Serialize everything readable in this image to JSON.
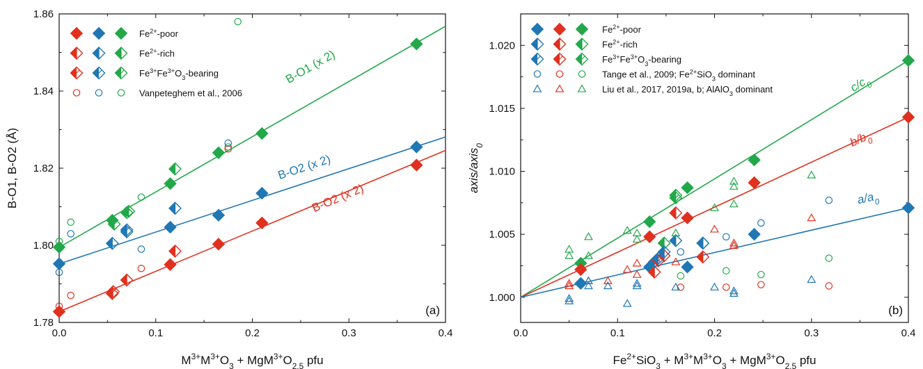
{
  "colors": {
    "red": "#e0301e",
    "blue": "#1f77b4",
    "green": "#22a84a",
    "axis": "#111111"
  },
  "chart_data": [
    {
      "type": "scatter",
      "panel_label": "(a)",
      "xlabel_parts": [
        "M",
        "3+",
        "M",
        "3+",
        "O",
        "3",
        " + MgM",
        "3+",
        "O",
        "2.5",
        " pfu"
      ],
      "ylabel_parts": [
        "B-O1, B-O2 (",
        "Å",
        ")"
      ],
      "xlim": [
        0,
        0.4
      ],
      "ylim": [
        1.78,
        1.86
      ],
      "xticks": [
        0.0,
        0.1,
        0.2,
        0.3,
        0.4
      ],
      "xtick_labels": [
        "0.0",
        "0.1",
        "0.2",
        "0.3",
        "0.4"
      ],
      "yticks": [
        1.78,
        1.8,
        1.82,
        1.84,
        1.86
      ],
      "ytick_labels": [
        "1.78",
        "1.80",
        "1.82",
        "1.84",
        "1.86"
      ],
      "legend": [
        {
          "parts": [
            "Fe",
            "2+",
            "-poor"
          ],
          "marker": "diamond-filled",
          "colors": [
            "red",
            "blue",
            "green"
          ]
        },
        {
          "parts": [
            "Fe",
            "2+",
            "-rich"
          ],
          "marker": "diamond-half-v",
          "colors": [
            "red",
            "blue",
            "green"
          ]
        },
        {
          "parts": [
            "Fe",
            "3+",
            "Fe",
            "3+",
            "O",
            "3",
            "-bearing"
          ],
          "marker": "diamond-half-d",
          "colors": [
            "red",
            "blue",
            "green"
          ]
        },
        {
          "parts": [
            "Vanpeteghem et al., 2006"
          ],
          "marker": "circle-open",
          "colors": [
            "red",
            "blue",
            "green"
          ]
        }
      ],
      "fits": [
        {
          "name": "B-O1 (x 2)",
          "color": "green",
          "x": [
            0,
            0.4
          ],
          "y": [
            1.7995,
            1.8568
          ],
          "label_at": [
            0.262,
            1.8454
          ]
        },
        {
          "name": "B-O2 (x 2)",
          "color": "blue",
          "x": [
            0,
            0.4
          ],
          "y": [
            1.7952,
            1.8281
          ],
          "label_at": [
            0.255,
            1.8193
          ]
        },
        {
          "name": "B-O2 (x 2)",
          "color": "red",
          "x": [
            0,
            0.4
          ],
          "y": [
            1.7828,
            1.8246
          ],
          "label_at": [
            0.29,
            1.8113
          ]
        }
      ],
      "series": [
        {
          "color": "green",
          "marker": "diamond-filled",
          "x": [
            0.0,
            0.055,
            0.115,
            0.165,
            0.21,
            0.37
          ],
          "y": [
            1.7995,
            1.8065,
            1.816,
            1.824,
            1.829,
            1.8522
          ]
        },
        {
          "color": "blue",
          "marker": "diamond-filled",
          "x": [
            0.0,
            0.115,
            0.165,
            0.21,
            0.37
          ],
          "y": [
            1.7952,
            1.8047,
            1.8078,
            1.8135,
            1.8255
          ]
        },
        {
          "color": "red",
          "marker": "diamond-filled",
          "x": [
            0.0,
            0.115,
            0.165,
            0.21,
            0.37
          ],
          "y": [
            1.7828,
            1.795,
            1.8003,
            1.8058,
            1.8208
          ]
        },
        {
          "color": "green",
          "marker": "diamond-half-v",
          "x": [
            0.057,
            0.072,
            0.12
          ],
          "y": [
            1.8055,
            1.8088,
            1.8198
          ]
        },
        {
          "color": "blue",
          "marker": "diamond-half-v",
          "x": [
            0.055,
            0.07,
            0.12
          ],
          "y": [
            1.8005,
            1.8035,
            1.8096
          ]
        },
        {
          "color": "red",
          "marker": "diamond-half-v",
          "x": [
            0.055,
            0.07,
            0.12
          ],
          "y": [
            1.7875,
            1.791,
            1.7985
          ]
        },
        {
          "color": "green",
          "marker": "diamond-half-d",
          "x": [
            0.07
          ],
          "y": [
            1.8085
          ]
        },
        {
          "color": "blue",
          "marker": "diamond-half-d",
          "x": [
            0.07
          ],
          "y": [
            1.804
          ]
        },
        {
          "color": "red",
          "marker": "diamond-half-d",
          "x": [
            0.056
          ],
          "y": [
            1.788
          ]
        },
        {
          "color": "green",
          "marker": "circle-open",
          "x": [
            0.0,
            0.012,
            0.085,
            0.175,
            0.185
          ],
          "y": [
            1.801,
            1.806,
            1.8125,
            1.8255,
            1.858
          ]
        },
        {
          "color": "blue",
          "marker": "circle-open",
          "x": [
            0.0,
            0.012,
            0.085,
            0.175
          ],
          "y": [
            1.793,
            1.803,
            1.799,
            1.8265
          ]
        },
        {
          "color": "red",
          "marker": "circle-open",
          "x": [
            0.0,
            0.012,
            0.085,
            0.175
          ],
          "y": [
            1.7842,
            1.787,
            1.794,
            1.825
          ]
        }
      ]
    },
    {
      "type": "scatter",
      "panel_label": "(b)",
      "xlabel_parts": [
        "Fe",
        "2+",
        "SiO",
        "3",
        " + M",
        "3+",
        "M",
        "3+",
        "O",
        "3",
        " + MgM",
        "3+",
        "O",
        "2.5",
        " pfu"
      ],
      "ylabel_parts": [
        "axis/axis",
        "0"
      ],
      "xlim": [
        0,
        0.4
      ],
      "ylim": [
        0.998,
        1.0225
      ],
      "xticks": [
        0.0,
        0.1,
        0.2,
        0.3,
        0.4
      ],
      "xtick_labels": [
        "0.0",
        "0.1",
        "0.2",
        "0.3",
        "0.4"
      ],
      "yticks": [
        1.0,
        1.005,
        1.01,
        1.015,
        1.02
      ],
      "ytick_labels": [
        "1.000",
        "1.005",
        "1.010",
        "1.015",
        "1.020"
      ],
      "legend": [
        {
          "parts": [
            "Fe",
            "2+",
            "-poor"
          ],
          "marker": "diamond-filled",
          "colors": [
            "blue",
            "red",
            "green"
          ]
        },
        {
          "parts": [
            "Fe",
            "2+",
            "-rich"
          ],
          "marker": "diamond-half-v",
          "colors": [
            "blue",
            "red",
            "green"
          ]
        },
        {
          "parts": [
            "Fe",
            "3+",
            "Fe",
            "3+",
            "O",
            "3",
            "-bearing"
          ],
          "marker": "diamond-half-d",
          "colors": [
            "blue",
            "red",
            "green"
          ]
        },
        {
          "parts": [
            "Tange et al., 2009; Fe",
            "2+",
            "SiO",
            "3",
            " dominant"
          ],
          "marker": "circle-open",
          "colors": [
            "blue",
            "red",
            "green"
          ]
        },
        {
          "parts": [
            "Liu et al., 2017, 2019a, b; AlAlO",
            "3",
            " dominant"
          ],
          "marker": "triangle-open",
          "colors": [
            "blue",
            "red",
            "green"
          ]
        }
      ],
      "fits": [
        {
          "name_parts": [
            "c/c",
            "0"
          ],
          "color": "green",
          "x": [
            0,
            0.4
          ],
          "y": [
            1.0,
            1.0188
          ],
          "label_at": [
            0.352,
            1.0167
          ]
        },
        {
          "name_parts": [
            "b/b",
            "0"
          ],
          "color": "red",
          "x": [
            0,
            0.4
          ],
          "y": [
            1.0,
            1.0143
          ],
          "label_at": [
            0.352,
            1.0123
          ]
        },
        {
          "name_parts": [
            "a/a",
            "0"
          ],
          "color": "blue",
          "x": [
            0,
            0.4
          ],
          "y": [
            1.0,
            1.0071
          ],
          "label_at": [
            0.359,
            1.0076
          ]
        }
      ],
      "series": [
        {
          "color": "green",
          "marker": "diamond-filled",
          "x": [
            0.062,
            0.133,
            0.172,
            0.241,
            0.4
          ],
          "y": [
            1.0027,
            1.006,
            1.0087,
            1.0109,
            1.0188
          ]
        },
        {
          "color": "red",
          "marker": "diamond-filled",
          "x": [
            0.062,
            0.133,
            0.172,
            0.241,
            0.4
          ],
          "y": [
            1.0022,
            1.0048,
            1.0063,
            1.0091,
            1.0143
          ]
        },
        {
          "color": "blue",
          "marker": "diamond-filled",
          "x": [
            0.062,
            0.133,
            0.172,
            0.241,
            0.4
          ],
          "y": [
            1.0011,
            1.0024,
            1.0024,
            1.005,
            1.0071
          ]
        },
        {
          "color": "green",
          "marker": "diamond-half-v",
          "x": [
            0.148,
            0.16,
            0.188
          ],
          "y": [
            1.0043,
            1.0081,
            1.0043
          ]
        },
        {
          "color": "red",
          "marker": "diamond-half-v",
          "x": [
            0.138,
            0.148,
            0.16,
            0.188
          ],
          "y": [
            1.002,
            1.0033,
            1.0067,
            1.0032
          ]
        },
        {
          "color": "blue",
          "marker": "diamond-half-v",
          "x": [
            0.138,
            0.148,
            0.16,
            0.188
          ],
          "y": [
            1.0028,
            1.0036,
            1.0045,
            1.0043
          ]
        },
        {
          "color": "green",
          "marker": "diamond-half-d",
          "x": [
            0.16
          ],
          "y": [
            1.0079
          ]
        },
        {
          "color": "red",
          "marker": "diamond-half-d",
          "x": [
            0.142
          ],
          "y": [
            1.0029
          ]
        },
        {
          "color": "blue",
          "marker": "diamond-half-d",
          "x": [
            0.142
          ],
          "y": [
            1.0031
          ]
        },
        {
          "color": "green",
          "marker": "circle-open",
          "x": [
            0.165,
            0.212,
            0.248,
            0.318
          ],
          "y": [
            1.0017,
            1.0021,
            1.0018,
            1.0031
          ]
        },
        {
          "color": "red",
          "marker": "circle-open",
          "x": [
            0.165,
            0.212,
            0.248,
            0.318
          ],
          "y": [
            1.0008,
            1.0008,
            1.001,
            1.0009
          ]
        },
        {
          "color": "blue",
          "marker": "circle-open",
          "x": [
            0.165,
            0.212,
            0.248,
            0.318
          ],
          "y": [
            1.0036,
            1.0048,
            1.0059,
            1.0077
          ]
        },
        {
          "color": "green",
          "marker": "triangle-open",
          "x": [
            0.05,
            0.05,
            0.07,
            0.07,
            0.11,
            0.12,
            0.12,
            0.16,
            0.2,
            0.22,
            0.22,
            0.22,
            0.3
          ],
          "y": [
            1.0038,
            1.0033,
            1.0048,
            1.0033,
            1.0053,
            1.0051,
            1.0046,
            1.0051,
            1.0071,
            1.0092,
            1.0088,
            1.0074,
            1.0097
          ]
        },
        {
          "color": "red",
          "marker": "triangle-open",
          "x": [
            0.05,
            0.05,
            0.07,
            0.09,
            0.11,
            0.12,
            0.12,
            0.16,
            0.2,
            0.22,
            0.22,
            0.3
          ],
          "y": [
            1.0011,
            1.0009,
            1.0013,
            1.0013,
            1.0022,
            1.0027,
            1.0018,
            1.0028,
            1.0054,
            1.0043,
            1.0041,
            1.0063
          ]
        },
        {
          "color": "blue",
          "marker": "triangle-open",
          "x": [
            0.05,
            0.05,
            0.07,
            0.07,
            0.09,
            0.11,
            0.12,
            0.12,
            0.16,
            0.2,
            0.22,
            0.22,
            0.3
          ],
          "y": [
            0.9999,
            0.9997,
            1.0013,
            1.0009,
            1.0009,
            0.9995,
            1.0011,
            1.0009,
            1.0008,
            1.0008,
            1.0005,
            1.0003,
            1.0014
          ]
        }
      ]
    }
  ]
}
